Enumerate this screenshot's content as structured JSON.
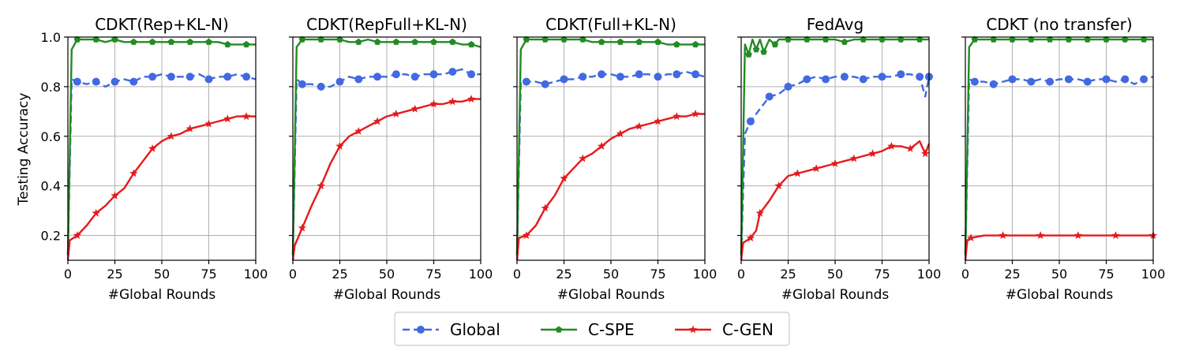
{
  "chart_data": {
    "type": "line",
    "ylabel": "Testing Accuracy",
    "xlabel": "#Global Rounds",
    "xlim": [
      0,
      100
    ],
    "ylim": [
      0.1,
      1.0
    ],
    "xticks": [
      "0",
      "25",
      "50",
      "75",
      "100"
    ],
    "yticks": [
      "0.2",
      "0.4",
      "0.6",
      "0.8",
      "1.0"
    ],
    "grid": true,
    "legend": {
      "placement": "bottom-center",
      "entries": [
        "Global",
        "C-SPE",
        "C-GEN"
      ]
    },
    "series_styles": [
      {
        "name": "Global",
        "color": "#4169e1",
        "dash": "dashed",
        "marker": "circle"
      },
      {
        "name": "C-SPE",
        "color": "#228b22",
        "dash": "solid",
        "marker": "pentagon"
      },
      {
        "name": "C-GEN",
        "color": "#e41a1c",
        "dash": "solid",
        "marker": "star"
      }
    ],
    "panels": [
      {
        "title": "CDKT(Rep+KL-N)",
        "show_ylabels": true,
        "series": [
          {
            "name": "Global",
            "x": [
              0,
              2,
              5,
              10,
              15,
              20,
              25,
              30,
              35,
              40,
              45,
              50,
              55,
              60,
              65,
              70,
              75,
              80,
              85,
              90,
              95,
              100
            ],
            "y": [
              0.12,
              0.83,
              0.82,
              0.81,
              0.82,
              0.8,
              0.82,
              0.83,
              0.82,
              0.84,
              0.84,
              0.85,
              0.84,
              0.84,
              0.84,
              0.85,
              0.83,
              0.84,
              0.84,
              0.85,
              0.84,
              0.83
            ]
          },
          {
            "name": "C-SPE",
            "x": [
              0,
              2,
              5,
              10,
              15,
              20,
              25,
              30,
              35,
              40,
              45,
              50,
              55,
              60,
              65,
              70,
              75,
              80,
              85,
              90,
              95,
              100
            ],
            "y": [
              0.12,
              0.95,
              0.99,
              0.99,
              0.99,
              0.98,
              0.99,
              0.98,
              0.98,
              0.98,
              0.98,
              0.98,
              0.98,
              0.98,
              0.98,
              0.98,
              0.98,
              0.98,
              0.97,
              0.97,
              0.97,
              0.97
            ]
          },
          {
            "name": "C-GEN",
            "x": [
              0,
              1,
              5,
              10,
              15,
              20,
              25,
              30,
              35,
              40,
              45,
              50,
              55,
              60,
              65,
              70,
              75,
              80,
              85,
              90,
              95,
              100
            ],
            "y": [
              0.1,
              0.18,
              0.2,
              0.24,
              0.29,
              0.32,
              0.36,
              0.39,
              0.45,
              0.5,
              0.55,
              0.58,
              0.6,
              0.61,
              0.63,
              0.64,
              0.65,
              0.66,
              0.67,
              0.68,
              0.68,
              0.68
            ]
          }
        ]
      },
      {
        "title": "CDKT(RepFull+KL-N)",
        "show_ylabels": false,
        "series": [
          {
            "name": "Global",
            "x": [
              0,
              2,
              5,
              10,
              15,
              20,
              25,
              30,
              35,
              40,
              45,
              50,
              55,
              60,
              65,
              70,
              75,
              80,
              85,
              90,
              95,
              100
            ],
            "y": [
              0.12,
              0.83,
              0.81,
              0.81,
              0.8,
              0.8,
              0.82,
              0.84,
              0.83,
              0.84,
              0.84,
              0.84,
              0.85,
              0.85,
              0.84,
              0.85,
              0.85,
              0.85,
              0.86,
              0.87,
              0.85,
              0.85
            ]
          },
          {
            "name": "C-SPE",
            "x": [
              0,
              2,
              5,
              10,
              15,
              20,
              25,
              30,
              35,
              40,
              45,
              50,
              55,
              60,
              65,
              70,
              75,
              80,
              85,
              90,
              95,
              100
            ],
            "y": [
              0.12,
              0.96,
              0.99,
              0.99,
              0.99,
              0.99,
              0.99,
              0.98,
              0.98,
              0.99,
              0.98,
              0.98,
              0.98,
              0.98,
              0.98,
              0.98,
              0.98,
              0.98,
              0.98,
              0.97,
              0.97,
              0.96
            ]
          },
          {
            "name": "C-GEN",
            "x": [
              0,
              1,
              5,
              10,
              15,
              20,
              25,
              30,
              35,
              40,
              45,
              50,
              55,
              60,
              65,
              70,
              75,
              80,
              85,
              90,
              95,
              100
            ],
            "y": [
              0.1,
              0.16,
              0.23,
              0.32,
              0.4,
              0.49,
              0.56,
              0.6,
              0.62,
              0.64,
              0.66,
              0.68,
              0.69,
              0.7,
              0.71,
              0.72,
              0.73,
              0.73,
              0.74,
              0.74,
              0.75,
              0.75
            ]
          }
        ]
      },
      {
        "title": "CDKT(Full+KL-N)",
        "show_ylabels": false,
        "series": [
          {
            "name": "Global",
            "x": [
              0,
              2,
              5,
              10,
              15,
              20,
              25,
              30,
              35,
              40,
              45,
              50,
              55,
              60,
              65,
              70,
              75,
              80,
              85,
              90,
              95,
              100
            ],
            "y": [
              0.12,
              0.82,
              0.82,
              0.82,
              0.81,
              0.82,
              0.83,
              0.83,
              0.84,
              0.84,
              0.85,
              0.85,
              0.84,
              0.84,
              0.85,
              0.85,
              0.84,
              0.85,
              0.85,
              0.86,
              0.85,
              0.84
            ]
          },
          {
            "name": "C-SPE",
            "x": [
              0,
              2,
              5,
              10,
              15,
              20,
              25,
              30,
              35,
              40,
              45,
              50,
              55,
              60,
              65,
              70,
              75,
              80,
              85,
              90,
              95,
              100
            ],
            "y": [
              0.12,
              0.95,
              0.99,
              0.99,
              0.99,
              0.99,
              0.99,
              0.99,
              0.99,
              0.98,
              0.98,
              0.98,
              0.98,
              0.98,
              0.98,
              0.98,
              0.98,
              0.97,
              0.97,
              0.97,
              0.97,
              0.97
            ]
          },
          {
            "name": "C-GEN",
            "x": [
              0,
              1,
              5,
              10,
              15,
              20,
              25,
              30,
              35,
              40,
              45,
              50,
              55,
              60,
              65,
              70,
              75,
              80,
              85,
              90,
              95,
              100
            ],
            "y": [
              0.1,
              0.19,
              0.2,
              0.24,
              0.31,
              0.36,
              0.43,
              0.47,
              0.51,
              0.53,
              0.56,
              0.59,
              0.61,
              0.63,
              0.64,
              0.65,
              0.66,
              0.67,
              0.68,
              0.68,
              0.69,
              0.69
            ]
          }
        ]
      },
      {
        "title": "FedAvg",
        "show_ylabels": false,
        "series": [
          {
            "name": "Global",
            "x": [
              0,
              2,
              5,
              10,
              15,
              20,
              25,
              30,
              35,
              40,
              45,
              50,
              55,
              60,
              65,
              70,
              75,
              80,
              85,
              90,
              95,
              98,
              100
            ],
            "y": [
              0.12,
              0.61,
              0.66,
              0.71,
              0.76,
              0.77,
              0.8,
              0.81,
              0.83,
              0.84,
              0.83,
              0.84,
              0.84,
              0.84,
              0.83,
              0.84,
              0.84,
              0.84,
              0.85,
              0.85,
              0.84,
              0.76,
              0.84
            ]
          },
          {
            "name": "C-SPE",
            "x": [
              0,
              2,
              4,
              6,
              8,
              10,
              12,
              15,
              18,
              20,
              25,
              30,
              35,
              40,
              45,
              50,
              55,
              60,
              65,
              70,
              75,
              80,
              85,
              90,
              95,
              100
            ],
            "y": [
              0.12,
              0.97,
              0.93,
              0.99,
              0.95,
              0.99,
              0.94,
              0.99,
              0.97,
              0.99,
              0.99,
              0.99,
              0.99,
              0.99,
              0.99,
              0.99,
              0.98,
              0.99,
              0.99,
              0.99,
              0.99,
              0.99,
              0.99,
              0.99,
              0.99,
              0.99
            ]
          },
          {
            "name": "C-GEN",
            "x": [
              0,
              1,
              5,
              8,
              10,
              15,
              20,
              25,
              30,
              35,
              40,
              45,
              50,
              55,
              60,
              65,
              70,
              75,
              80,
              85,
              90,
              95,
              98,
              100
            ],
            "y": [
              0.1,
              0.17,
              0.19,
              0.22,
              0.29,
              0.34,
              0.4,
              0.44,
              0.45,
              0.46,
              0.47,
              0.48,
              0.49,
              0.5,
              0.51,
              0.52,
              0.53,
              0.54,
              0.56,
              0.56,
              0.55,
              0.58,
              0.53,
              0.57
            ]
          }
        ]
      },
      {
        "title": "CDKT (no transfer)",
        "show_ylabels": false,
        "series": [
          {
            "name": "Global",
            "x": [
              0,
              2,
              5,
              10,
              15,
              20,
              25,
              30,
              35,
              40,
              45,
              50,
              55,
              60,
              65,
              70,
              75,
              80,
              85,
              90,
              95,
              100
            ],
            "y": [
              0.12,
              0.83,
              0.82,
              0.82,
              0.81,
              0.82,
              0.83,
              0.83,
              0.82,
              0.83,
              0.82,
              0.83,
              0.83,
              0.83,
              0.82,
              0.83,
              0.83,
              0.82,
              0.83,
              0.81,
              0.83,
              0.84
            ]
          },
          {
            "name": "C-SPE",
            "x": [
              0,
              2,
              5,
              10,
              15,
              20,
              25,
              30,
              35,
              40,
              45,
              50,
              55,
              60,
              65,
              70,
              75,
              80,
              85,
              90,
              95,
              100
            ],
            "y": [
              0.12,
              0.96,
              0.99,
              0.99,
              0.99,
              0.99,
              0.99,
              0.99,
              0.99,
              0.99,
              0.99,
              0.99,
              0.99,
              0.99,
              0.99,
              0.99,
              0.99,
              0.99,
              0.99,
              0.99,
              0.99,
              0.99
            ]
          },
          {
            "name": "C-GEN",
            "x": [
              0,
              1,
              3,
              10,
              20,
              30,
              40,
              50,
              60,
              70,
              80,
              90,
              100
            ],
            "y": [
              0.1,
              0.18,
              0.19,
              0.2,
              0.2,
              0.2,
              0.2,
              0.2,
              0.2,
              0.2,
              0.2,
              0.2,
              0.2
            ]
          }
        ]
      }
    ]
  }
}
